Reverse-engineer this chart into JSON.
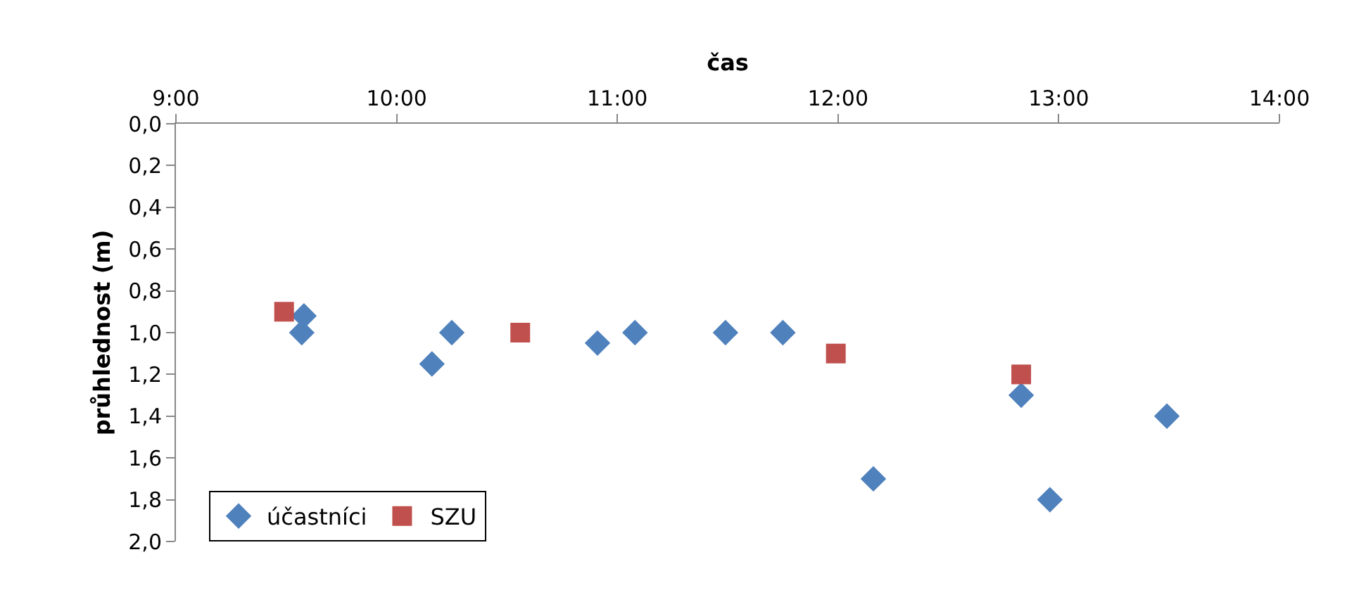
{
  "chart_data": {
    "type": "scatter",
    "xlabel": "čas",
    "ylabel": "průhlednost (m)",
    "xlim": [
      9,
      14
    ],
    "xticks": [
      {
        "value": 9,
        "label": "9:00"
      },
      {
        "value": 10,
        "label": "10:00"
      },
      {
        "value": 11,
        "label": "11:00"
      },
      {
        "value": 12,
        "label": "12:00"
      },
      {
        "value": 13,
        "label": "13:00"
      },
      {
        "value": 14,
        "label": "14:00"
      }
    ],
    "ylim": [
      2.0,
      0.0
    ],
    "yticks": [
      {
        "value": 0,
        "label": "0,0"
      },
      {
        "value": 0.2,
        "label": "0,2"
      },
      {
        "value": 0.4,
        "label": "0,4"
      },
      {
        "value": 0.6,
        "label": "0,6"
      },
      {
        "value": 0.8,
        "label": "0,8"
      },
      {
        "value": 1.0,
        "label": "1,0"
      },
      {
        "value": 1.2,
        "label": "1,2"
      },
      {
        "value": 1.4,
        "label": "1,4"
      },
      {
        "value": 1.6,
        "label": "1,6"
      },
      {
        "value": 1.8,
        "label": "1,8"
      },
      {
        "value": 2.0,
        "label": "2,0"
      }
    ],
    "grid": false,
    "legend": "bottom left",
    "series": [
      {
        "name": "účastníci",
        "color": "#4f81bd",
        "marker": "diamond",
        "x": [
          9.58,
          9.57,
          10.16,
          10.25,
          10.91,
          11.08,
          11.49,
          11.75,
          12.16,
          12.83,
          12.96,
          13.49
        ],
        "values": [
          0.92,
          1.0,
          1.15,
          1.0,
          1.05,
          1.0,
          1.0,
          1.0,
          1.7,
          1.3,
          1.8,
          1.4
        ]
      },
      {
        "name": "SZU",
        "color": "#c0504d",
        "marker": "square",
        "x": [
          9.49,
          10.56,
          11.99,
          12.83
        ],
        "values": [
          0.9,
          1.0,
          1.1,
          1.2
        ]
      }
    ]
  }
}
